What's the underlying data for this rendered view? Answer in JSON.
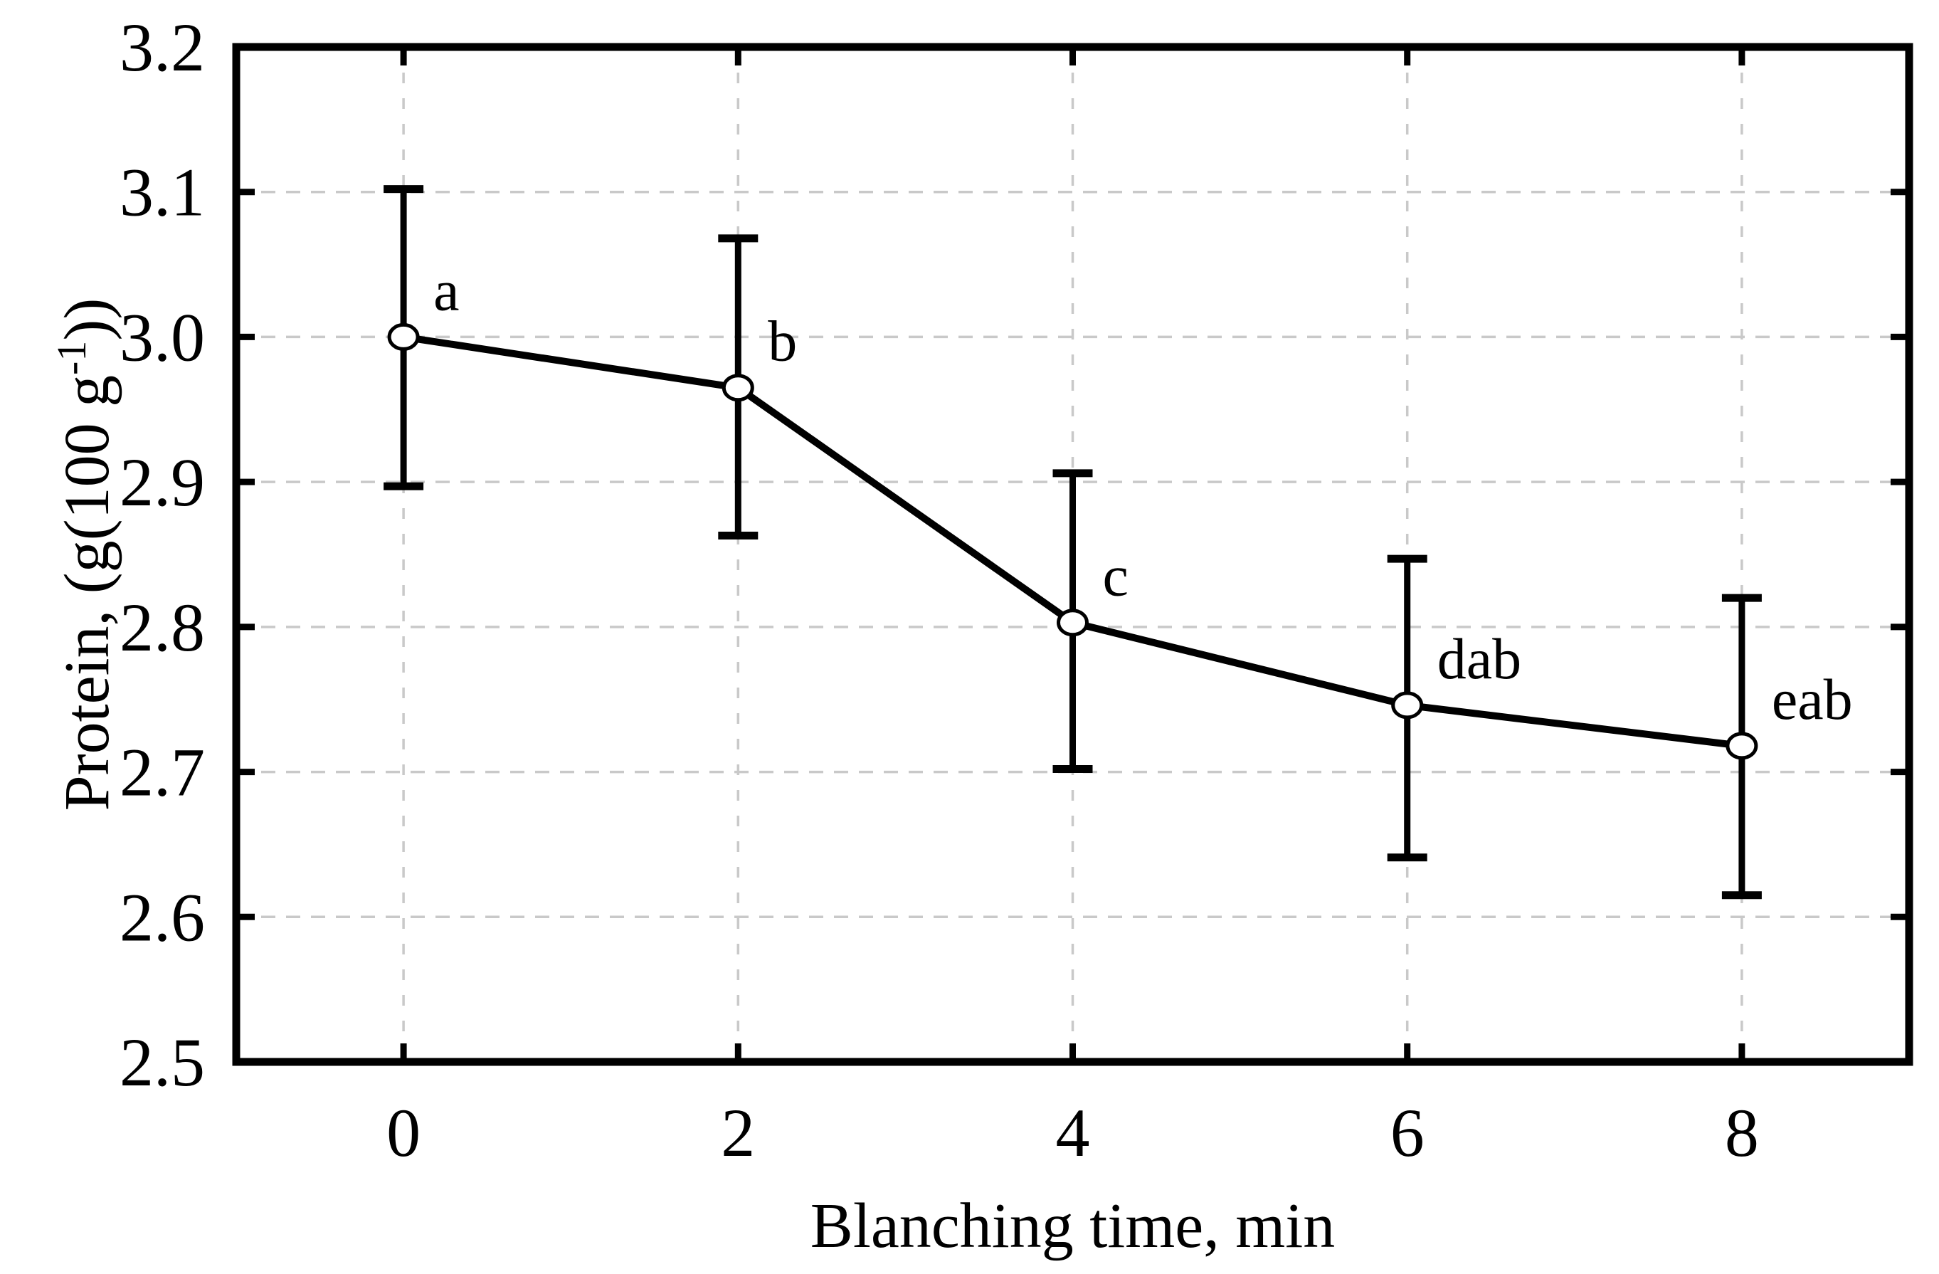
{
  "chart_data": {
    "type": "line",
    "title": "",
    "xlabel": "Blanching time, min",
    "ylabel": "Protein, (g(100 g⁻¹))",
    "ylabel_parts": {
      "prefix": "Protein,  (g(100 g",
      "superscript": "-1",
      "suffix": "))"
    },
    "x": [
      0,
      2,
      4,
      6,
      8
    ],
    "values": [
      3.0,
      2.965,
      2.803,
      2.746,
      2.718
    ],
    "error_upper": [
      3.102,
      3.068,
      2.906,
      2.847,
      2.82
    ],
    "error_lower": [
      2.897,
      2.863,
      2.702,
      2.641,
      2.615
    ],
    "point_labels": [
      "a",
      "b",
      "c",
      "dab",
      "eab"
    ],
    "xlim": [
      -1,
      9
    ],
    "ylim": [
      2.5,
      3.2
    ],
    "x_ticks": [
      0,
      2,
      4,
      6,
      8
    ],
    "x_tick_labels": [
      "0",
      "2",
      "4",
      "6",
      "8"
    ],
    "y_ticks": [
      2.5,
      2.6,
      2.7,
      2.8,
      2.9,
      3.0,
      3.1,
      3.2
    ],
    "y_tick_labels": [
      "2.5",
      "2.6",
      "2.7",
      "2.8",
      "2.9",
      "3.0",
      "3.1",
      "3.2"
    ],
    "grid": true,
    "grid_style": "dashed",
    "legend": "none",
    "marker": "open-circle",
    "colors": {
      "line": "#000000",
      "marker_fill": "#ffffff",
      "marker_stroke": "#000000",
      "grid": "#c9c9c9",
      "frame": "#000000",
      "background": "#ffffff",
      "text": "#000000"
    }
  }
}
